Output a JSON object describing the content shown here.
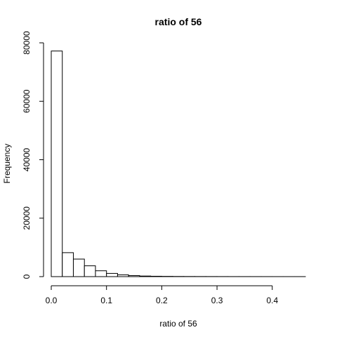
{
  "chart_data": {
    "type": "bar",
    "subtype": "histogram",
    "title": "ratio of 56",
    "xlabel": "ratio of 56",
    "ylabel": "Frequency",
    "bin_width": 0.02,
    "x_start": 0.0,
    "xlim": [
      0.0,
      0.46
    ],
    "ylim": [
      0,
      80000
    ],
    "x_ticks": [
      0.0,
      0.1,
      0.2,
      0.3,
      0.4
    ],
    "x_tick_labels": [
      "0.0",
      "0.1",
      "0.2",
      "0.3",
      "0.4"
    ],
    "y_ticks": [
      0,
      20000,
      40000,
      60000,
      80000
    ],
    "y_tick_labels": [
      "0",
      "20000",
      "40000",
      "60000",
      "80000"
    ],
    "values": [
      77200,
      8200,
      6000,
      3700,
      2000,
      1100,
      600,
      350,
      200,
      130,
      90,
      60,
      45,
      35,
      28,
      22,
      18,
      15,
      12,
      10,
      8,
      6,
      5
    ],
    "grid": false,
    "legend": "none",
    "colors": {
      "fill": "#ffffff",
      "stroke": "#000000"
    }
  }
}
